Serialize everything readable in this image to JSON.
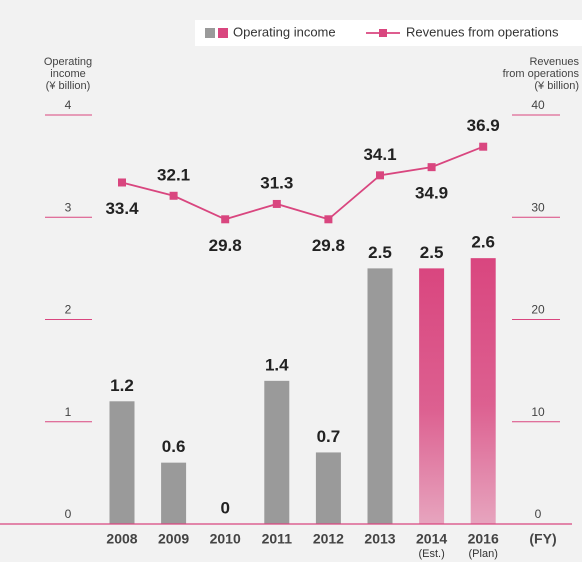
{
  "chart_data": {
    "type": "bar",
    "categories": [
      "2008",
      "2009",
      "2010",
      "2011",
      "2012",
      "2013",
      "2014",
      "2016"
    ],
    "category_notes": [
      null,
      null,
      null,
      null,
      null,
      null,
      "(Est.)",
      "(Plan)"
    ],
    "x_label": "(FY)",
    "y_label_lines": [
      "Operating",
      "income",
      "(¥ billion)"
    ],
    "y2_label_lines": [
      "Revenues",
      "from operations",
      "(¥ billion)"
    ],
    "series": [
      {
        "name": "Operating income",
        "colors": [
          "#9a9a9a",
          "#9a9a9a",
          "#9a9a9a",
          "#9a9a9a",
          "#9a9a9a",
          "#9a9a9a",
          "#d9467f",
          "#d9467f"
        ],
        "values": [
          1.2,
          0.6,
          0,
          1.4,
          0.7,
          2.5,
          2.5,
          2.6
        ]
      },
      {
        "name": "Revenues from operations",
        "color": "#d9467f",
        "axis": "y2",
        "values": [
          33.4,
          32.1,
          29.8,
          31.3,
          29.8,
          34.1,
          34.9,
          36.9
        ]
      }
    ],
    "ylim": [
      0,
      4
    ],
    "yticks": [
      0,
      1,
      2,
      3,
      4
    ],
    "y2lim": [
      0,
      40
    ],
    "y2ticks": [
      0,
      10,
      20,
      30,
      40
    ],
    "accent_color": "#d9467f"
  }
}
